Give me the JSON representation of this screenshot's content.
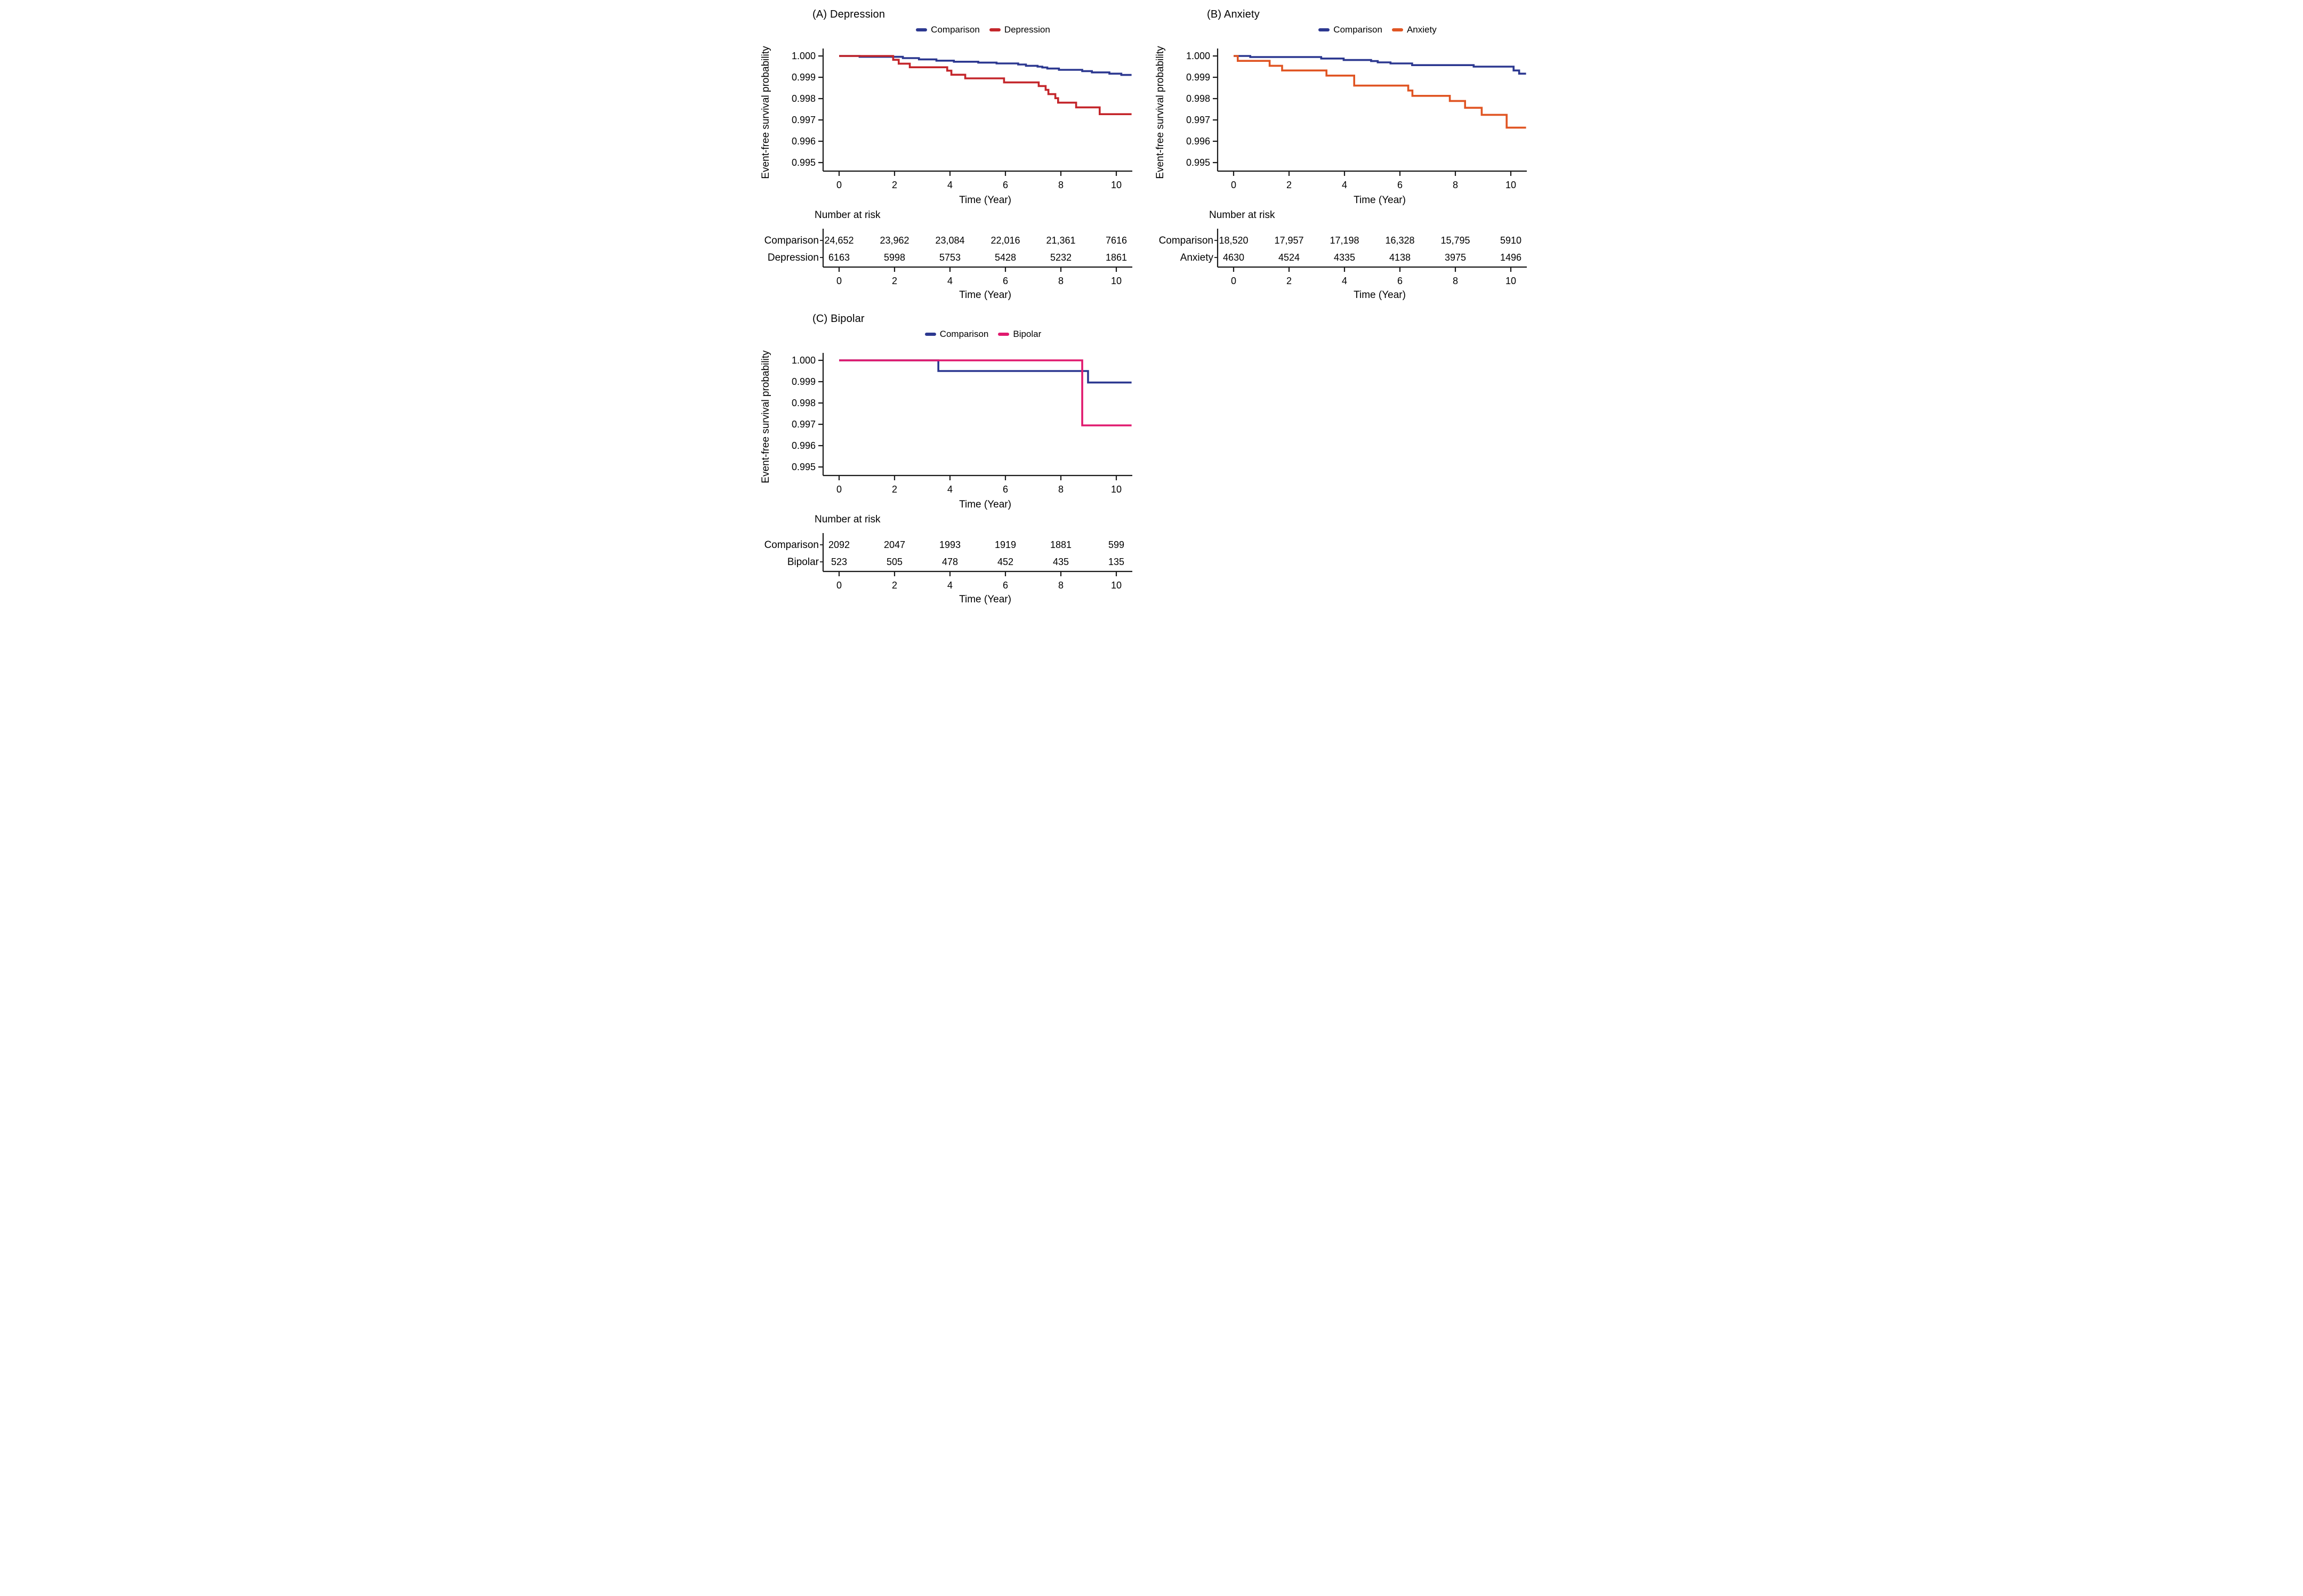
{
  "figure": {
    "ylabel": "Event-free survival probability",
    "xlabel": "Time (Year)",
    "risk_header": "Number at risk"
  },
  "colors": {
    "comparison": "#2c3890",
    "depression": "#c4262b",
    "anxiety": "#e05523",
    "bipolar": "#e0196e",
    "axis": "#1a1a1a"
  },
  "chart_data": [
    {
      "type": "line",
      "panel": "A",
      "title": "(A) Depression",
      "ylabel": "Event-free survival probability",
      "xlabel": "Time (Year)",
      "ylim": [
        0.995,
        1.0
      ],
      "xlim": [
        0,
        10.55
      ],
      "x_ticks": [
        0,
        2,
        4,
        6,
        8,
        10
      ],
      "y_ticks": [
        1.0,
        0.999,
        0.998,
        0.997,
        0.996,
        0.995
      ],
      "y_tick_labels": [
        "1.000",
        "0.999",
        "0.998",
        "0.997",
        "0.996",
        "0.995"
      ],
      "grid": false,
      "legend_position": "top",
      "legend": [
        {
          "label": "Comparison",
          "color": "#2c3890"
        },
        {
          "label": "Depression",
          "color": "#c4262b"
        }
      ],
      "series": [
        {
          "name": "Comparison",
          "color": "#2c3890",
          "steps": [
            [
              0,
              1.0
            ],
            [
              0.74,
              0.99996
            ],
            [
              2.3,
              0.9999
            ],
            [
              2.88,
              0.99984
            ],
            [
              3.51,
              0.99978
            ],
            [
              4.14,
              0.99973
            ],
            [
              5.02,
              0.99969
            ],
            [
              5.68,
              0.99965
            ],
            [
              6.46,
              0.9996
            ],
            [
              6.74,
              0.99954
            ],
            [
              7.16,
              0.9995
            ],
            [
              7.33,
              0.99946
            ],
            [
              7.51,
              0.99941
            ],
            [
              7.93,
              0.99935
            ],
            [
              8.77,
              0.99929
            ],
            [
              9.12,
              0.99923
            ],
            [
              9.75,
              0.99917
            ],
            [
              10.18,
              0.99911
            ]
          ]
        },
        {
          "name": "Depression",
          "color": "#c4262b",
          "steps": [
            [
              0,
              1.0
            ],
            [
              1.95,
              0.99982
            ],
            [
              2.15,
              0.99964
            ],
            [
              2.55,
              0.99947
            ],
            [
              3.9,
              0.99931
            ],
            [
              4.05,
              0.99912
            ],
            [
              4.55,
              0.99895
            ],
            [
              5.95,
              0.99876
            ],
            [
              7.2,
              0.99859
            ],
            [
              7.45,
              0.99841
            ],
            [
              7.55,
              0.99821
            ],
            [
              7.8,
              0.99802
            ],
            [
              7.9,
              0.99781
            ],
            [
              8.55,
              0.99759
            ],
            [
              9.4,
              0.99727
            ]
          ]
        }
      ],
      "risk_table": {
        "header": "Number at risk",
        "time_points": [
          0,
          2,
          4,
          6,
          8,
          10
        ],
        "rows": [
          {
            "label": "Comparison",
            "color": "#2c3890",
            "values": [
              "24,652",
              "23,962",
              "23,084",
              "22,016",
              "21,361",
              "7616"
            ]
          },
          {
            "label": "Depression",
            "color": "#c4262b",
            "values": [
              "6163",
              "5998",
              "5753",
              "5428",
              "5232",
              "1861"
            ]
          }
        ]
      }
    },
    {
      "type": "line",
      "panel": "B",
      "title": "(B) Anxiety",
      "ylabel": "Event-free survival probability",
      "xlabel": "Time (Year)",
      "ylim": [
        0.995,
        1.0
      ],
      "xlim": [
        0,
        10.55
      ],
      "x_ticks": [
        0,
        2,
        4,
        6,
        8,
        10
      ],
      "y_ticks": [
        1.0,
        0.999,
        0.998,
        0.997,
        0.996,
        0.995
      ],
      "y_tick_labels": [
        "1.000",
        "0.999",
        "0.998",
        "0.997",
        "0.996",
        "0.995"
      ],
      "grid": false,
      "legend_position": "top",
      "legend": [
        {
          "label": "Comparison",
          "color": "#2c3890"
        },
        {
          "label": "Anxiety",
          "color": "#e05523"
        }
      ],
      "series": [
        {
          "name": "Comparison",
          "color": "#2c3890",
          "steps": [
            [
              0,
              1.0
            ],
            [
              0.6,
              0.99995
            ],
            [
              3.16,
              0.99988
            ],
            [
              3.97,
              0.99981
            ],
            [
              4.96,
              0.99976
            ],
            [
              5.2,
              0.9997
            ],
            [
              5.66,
              0.99965
            ],
            [
              6.44,
              0.99957
            ],
            [
              8.66,
              0.9995
            ],
            [
              10.1,
              0.99932
            ],
            [
              10.3,
              0.99917
            ]
          ]
        },
        {
          "name": "Anxiety",
          "color": "#e05523",
          "steps": [
            [
              0,
              1.0
            ],
            [
              0.15,
              0.99977
            ],
            [
              1.3,
              0.99954
            ],
            [
              1.75,
              0.99932
            ],
            [
              3.35,
              0.99908
            ],
            [
              4.35,
              0.99861
            ],
            [
              6.3,
              0.99838
            ],
            [
              6.45,
              0.99813
            ],
            [
              7.8,
              0.99789
            ],
            [
              8.35,
              0.99757
            ],
            [
              8.95,
              0.99724
            ],
            [
              9.85,
              0.99664
            ]
          ]
        }
      ],
      "risk_table": {
        "header": "Number at risk",
        "time_points": [
          0,
          2,
          4,
          6,
          8,
          10
        ],
        "rows": [
          {
            "label": "Comparison",
            "color": "#2c3890",
            "values": [
              "18,520",
              "17,957",
              "17,198",
              "16,328",
              "15,795",
              "5910"
            ]
          },
          {
            "label": "Anxiety",
            "color": "#e05523",
            "values": [
              "4630",
              "4524",
              "4335",
              "4138",
              "3975",
              "1496"
            ]
          }
        ]
      }
    },
    {
      "type": "line",
      "panel": "C",
      "title": "(C) Bipolar",
      "ylabel": "Event-free survival probability",
      "xlabel": "Time (Year)",
      "ylim": [
        0.995,
        1.0
      ],
      "xlim": [
        0,
        10.55
      ],
      "x_ticks": [
        0,
        2,
        4,
        6,
        8,
        10
      ],
      "y_ticks": [
        1.0,
        0.999,
        0.998,
        0.997,
        0.996,
        0.995
      ],
      "y_tick_labels": [
        "1.000",
        "0.999",
        "0.998",
        "0.997",
        "0.996",
        "0.995"
      ],
      "grid": false,
      "legend_position": "top",
      "legend": [
        {
          "label": "Comparison",
          "color": "#2c3890"
        },
        {
          "label": "Bipolar",
          "color": "#e0196e"
        }
      ],
      "series": [
        {
          "name": "Comparison",
          "color": "#2c3890",
          "steps": [
            [
              0,
              1.0
            ],
            [
              3.58,
              0.9995
            ],
            [
              8.98,
              0.99896
            ]
          ]
        },
        {
          "name": "Bipolar",
          "color": "#e0196e",
          "steps": [
            [
              0,
              1.0
            ],
            [
              8.77,
              0.99695
            ]
          ]
        }
      ],
      "risk_table": {
        "header": "Number at risk",
        "time_points": [
          0,
          2,
          4,
          6,
          8,
          10
        ],
        "rows": [
          {
            "label": "Comparison",
            "color": "#2c3890",
            "values": [
              "2092",
              "2047",
              "1993",
              "1919",
              "1881",
              "599"
            ]
          },
          {
            "label": "Bipolar",
            "color": "#e0196e",
            "values": [
              "523",
              "505",
              "478",
              "452",
              "435",
              "135"
            ]
          }
        ]
      }
    }
  ]
}
